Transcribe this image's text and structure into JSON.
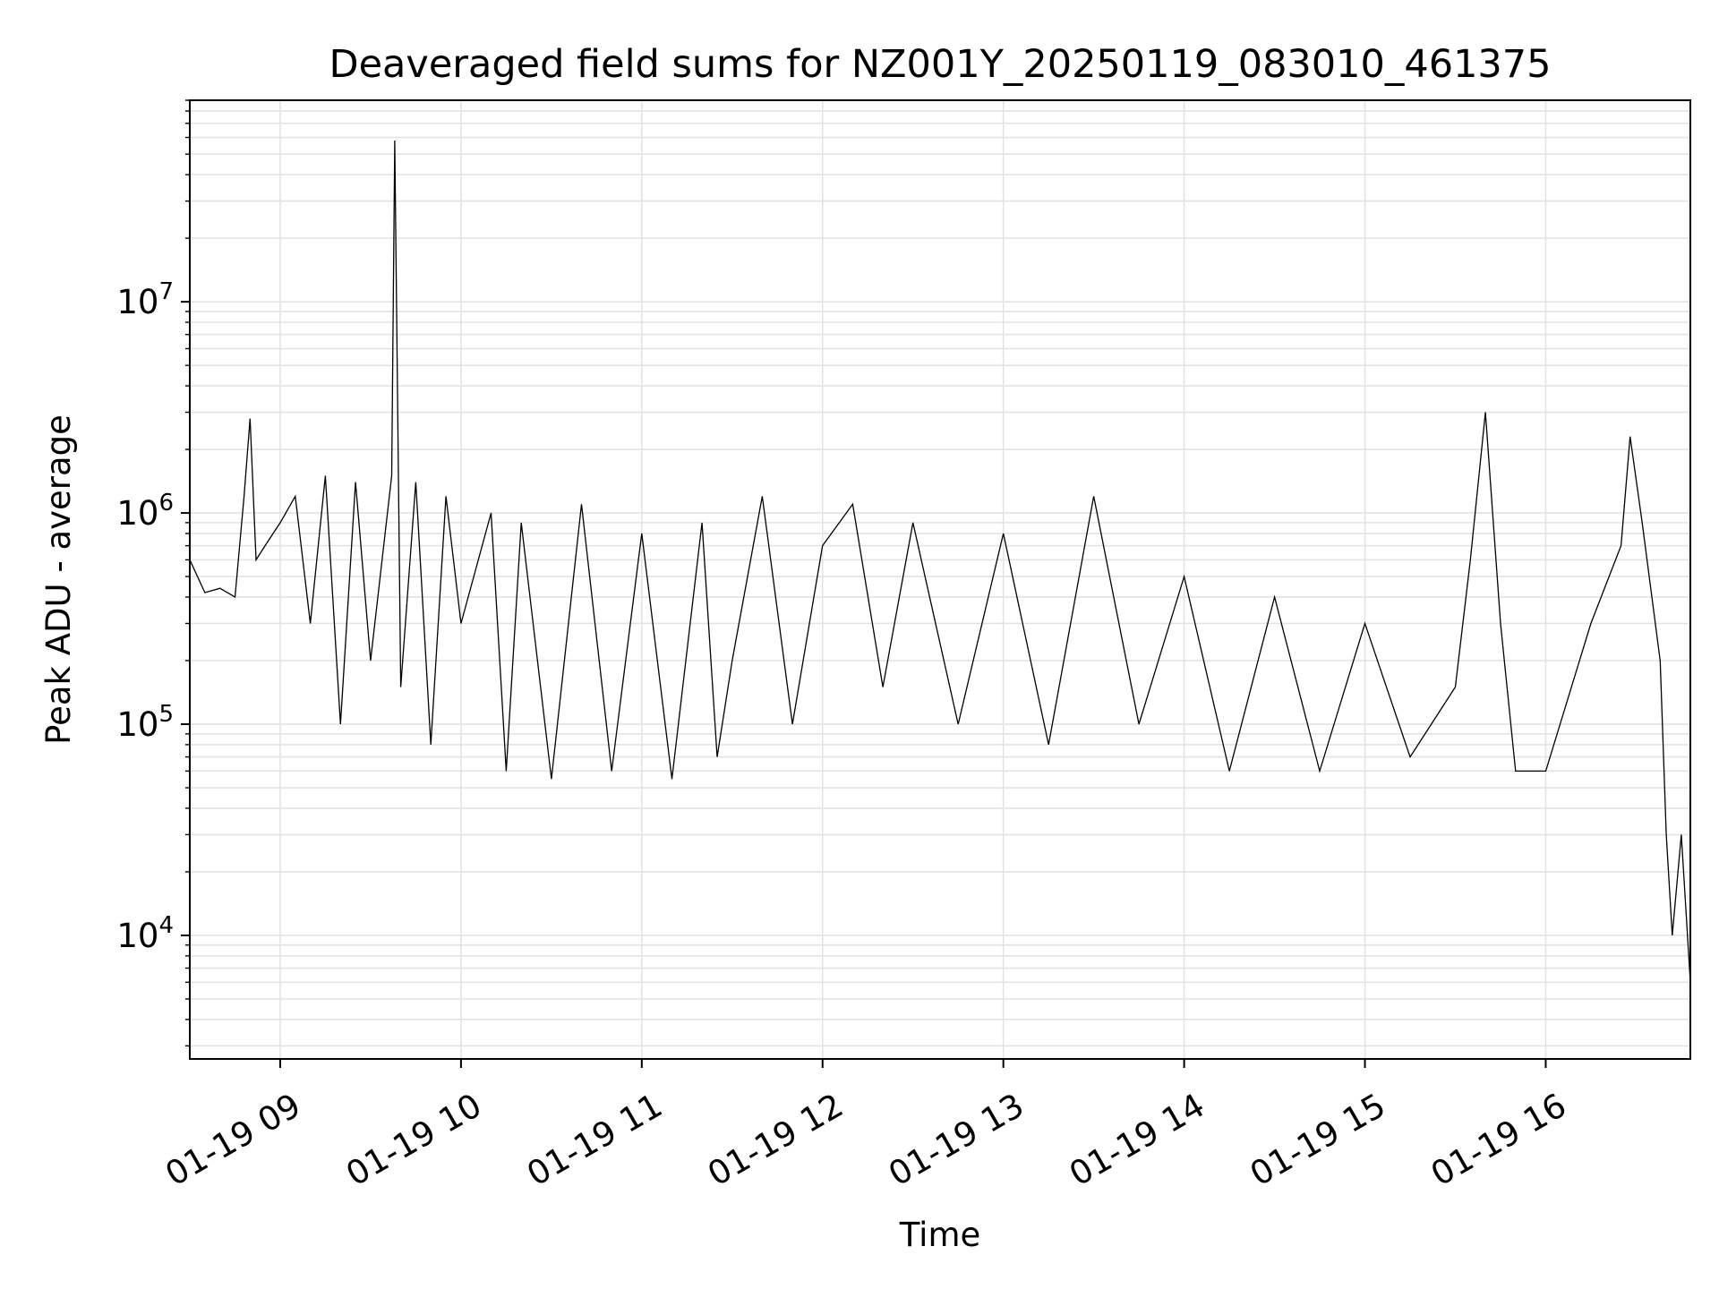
{
  "chart_data": {
    "type": "line",
    "title": "Deaveraged field sums for NZ001Y_20250119_083010_461375",
    "xlabel": "Time",
    "ylabel": "Peak ADU - average",
    "x_range": [
      "2025-01-19T08:30:00",
      "2025-01-19T16:48:00"
    ],
    "y_scale": "log",
    "y_range": [
      2600,
      90000000
    ],
    "x_ticks": [
      {
        "value": "2025-01-19T09:00:00",
        "label": "01-19 09"
      },
      {
        "value": "2025-01-19T10:00:00",
        "label": "01-19 10"
      },
      {
        "value": "2025-01-19T11:00:00",
        "label": "01-19 11"
      },
      {
        "value": "2025-01-19T12:00:00",
        "label": "01-19 12"
      },
      {
        "value": "2025-01-19T13:00:00",
        "label": "01-19 13"
      },
      {
        "value": "2025-01-19T14:00:00",
        "label": "01-19 14"
      },
      {
        "value": "2025-01-19T15:00:00",
        "label": "01-19 15"
      },
      {
        "value": "2025-01-19T16:00:00",
        "label": "01-19 16"
      }
    ],
    "y_ticks": [
      {
        "value": 10000,
        "base": "10",
        "exponent": "4"
      },
      {
        "value": 100000,
        "base": "10",
        "exponent": "5"
      },
      {
        "value": 1000000,
        "base": "10",
        "exponent": "6"
      },
      {
        "value": 10000000,
        "base": "10",
        "exponent": "7"
      }
    ],
    "grid": true,
    "line_color": "#000000",
    "series": [
      {
        "points": [
          [
            "2025-01-19T08:30:00",
            600000
          ],
          [
            "2025-01-19T08:35:00",
            420000
          ],
          [
            "2025-01-19T08:40:00",
            440000
          ],
          [
            "2025-01-19T08:45:00",
            400000
          ],
          [
            "2025-01-19T08:48:00",
            1200000
          ],
          [
            "2025-01-19T08:50:00",
            2800000
          ],
          [
            "2025-01-19T08:52:00",
            600000
          ],
          [
            "2025-01-19T08:55:00",
            700000
          ],
          [
            "2025-01-19T09:00:00",
            900000
          ],
          [
            "2025-01-19T09:05:00",
            1200000
          ],
          [
            "2025-01-19T09:10:00",
            300000
          ],
          [
            "2025-01-19T09:15:00",
            1500000
          ],
          [
            "2025-01-19T09:20:00",
            100000
          ],
          [
            "2025-01-19T09:25:00",
            1400000
          ],
          [
            "2025-01-19T09:30:00",
            200000
          ],
          [
            "2025-01-19T09:37:00",
            1500000
          ],
          [
            "2025-01-19T09:38:00",
            58000000
          ],
          [
            "2025-01-19T09:40:00",
            150000
          ],
          [
            "2025-01-19T09:45:00",
            1400000
          ],
          [
            "2025-01-19T09:50:00",
            80000
          ],
          [
            "2025-01-19T09:55:00",
            1200000
          ],
          [
            "2025-01-19T10:00:00",
            300000
          ],
          [
            "2025-01-19T10:10:00",
            1000000
          ],
          [
            "2025-01-19T10:15:00",
            60000
          ],
          [
            "2025-01-19T10:20:00",
            900000
          ],
          [
            "2025-01-19T10:30:00",
            55000
          ],
          [
            "2025-01-19T10:40:00",
            1100000
          ],
          [
            "2025-01-19T10:50:00",
            60000
          ],
          [
            "2025-01-19T11:00:00",
            800000
          ],
          [
            "2025-01-19T11:10:00",
            55000
          ],
          [
            "2025-01-19T11:20:00",
            900000
          ],
          [
            "2025-01-19T11:25:00",
            70000
          ],
          [
            "2025-01-19T11:30:00",
            200000
          ],
          [
            "2025-01-19T11:40:00",
            1200000
          ],
          [
            "2025-01-19T11:50:00",
            100000
          ],
          [
            "2025-01-19T12:00:00",
            700000
          ],
          [
            "2025-01-19T12:10:00",
            1100000
          ],
          [
            "2025-01-19T12:20:00",
            150000
          ],
          [
            "2025-01-19T12:30:00",
            900000
          ],
          [
            "2025-01-19T12:45:00",
            100000
          ],
          [
            "2025-01-19T13:00:00",
            800000
          ],
          [
            "2025-01-19T13:15:00",
            80000
          ],
          [
            "2025-01-19T13:30:00",
            1200000
          ],
          [
            "2025-01-19T13:45:00",
            100000
          ],
          [
            "2025-01-19T14:00:00",
            500000
          ],
          [
            "2025-01-19T14:15:00",
            60000
          ],
          [
            "2025-01-19T14:30:00",
            400000
          ],
          [
            "2025-01-19T14:45:00",
            60000
          ],
          [
            "2025-01-19T15:00:00",
            300000
          ],
          [
            "2025-01-19T15:15:00",
            70000
          ],
          [
            "2025-01-19T15:30:00",
            150000
          ],
          [
            "2025-01-19T15:35:00",
            600000
          ],
          [
            "2025-01-19T15:40:00",
            3000000
          ],
          [
            "2025-01-19T15:45:00",
            300000
          ],
          [
            "2025-01-19T15:50:00",
            60000
          ],
          [
            "2025-01-19T16:00:00",
            60000
          ],
          [
            "2025-01-19T16:15:00",
            300000
          ],
          [
            "2025-01-19T16:25:00",
            700000
          ],
          [
            "2025-01-19T16:28:00",
            2300000
          ],
          [
            "2025-01-19T16:32:00",
            900000
          ],
          [
            "2025-01-19T16:38:00",
            200000
          ],
          [
            "2025-01-19T16:40:00",
            30000
          ],
          [
            "2025-01-19T16:42:00",
            10000
          ],
          [
            "2025-01-19T16:45:00",
            30000
          ],
          [
            "2025-01-19T16:48:00",
            6000
          ]
        ]
      }
    ]
  }
}
